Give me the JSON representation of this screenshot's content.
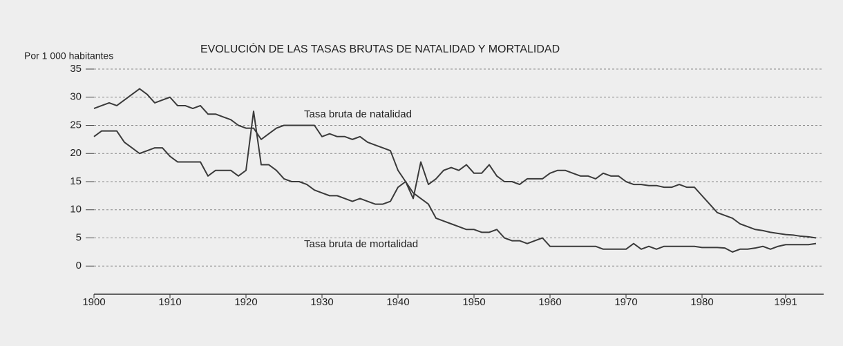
{
  "chart_data": {
    "type": "line",
    "title": "EVOLUCIÓN DE LAS TASAS BRUTAS DE NATALIDAD Y MORTALIDAD",
    "y_label": "Por 1 000 habitantes",
    "x": [
      1900,
      1901,
      1902,
      1903,
      1904,
      1905,
      1906,
      1907,
      1908,
      1909,
      1910,
      1911,
      1912,
      1913,
      1914,
      1915,
      1916,
      1917,
      1918,
      1919,
      1920,
      1921,
      1922,
      1923,
      1924,
      1925,
      1926,
      1927,
      1928,
      1929,
      1930,
      1931,
      1932,
      1933,
      1934,
      1935,
      1936,
      1937,
      1938,
      1939,
      1940,
      1941,
      1942,
      1943,
      1944,
      1945,
      1946,
      1947,
      1948,
      1949,
      1950,
      1951,
      1952,
      1953,
      1954,
      1955,
      1956,
      1957,
      1958,
      1959,
      1960,
      1961,
      1962,
      1963,
      1964,
      1965,
      1966,
      1967,
      1968,
      1969,
      1970,
      1971,
      1972,
      1973,
      1974,
      1975,
      1976,
      1977,
      1978,
      1979,
      1980,
      1981,
      1982,
      1983,
      1984,
      1985,
      1986,
      1987,
      1988,
      1989,
      1990,
      1991,
      1992,
      1993,
      1994,
      1995
    ],
    "series": [
      {
        "name": "Tasa bruta de natalidad",
        "color": "#3a3a3a",
        "values": [
          28,
          28.5,
          29,
          28.5,
          29.5,
          30.5,
          31.5,
          30.5,
          29,
          29.5,
          30,
          28.5,
          28.5,
          28,
          28.5,
          27,
          27,
          26.5,
          26,
          25,
          24.5,
          24.5,
          22.5,
          23.5,
          24.5,
          25,
          25,
          25,
          25,
          25,
          23,
          23.5,
          23,
          23,
          22.5,
          23,
          22,
          21.5,
          21,
          20.5,
          17,
          15,
          12,
          18.5,
          14.5,
          15.5,
          17,
          17.5,
          17,
          18,
          16.5,
          16.5,
          18,
          16,
          15,
          15,
          14.5,
          15.5,
          15.5,
          15.5,
          16.5,
          17,
          17,
          16.5,
          16,
          16,
          15.5,
          16.5,
          16,
          16,
          15,
          14.5,
          14.5,
          14.3,
          14.3,
          14,
          14,
          14.5,
          14,
          14,
          12.5,
          11,
          9.5,
          9,
          8.5,
          7.5,
          7,
          6.5,
          6.3,
          6,
          5.8,
          5.6,
          5.5,
          5.3,
          5.2,
          5
        ]
      },
      {
        "name": "Tasa bruta de mortalidad",
        "color": "#3a3a3a",
        "values": [
          23,
          24,
          24,
          24,
          22,
          21,
          20,
          20.5,
          21,
          21,
          19.5,
          18.5,
          18.5,
          18.5,
          18.5,
          16,
          17,
          17,
          17,
          16,
          17,
          27.5,
          18,
          18,
          17,
          15.5,
          15,
          15,
          14.5,
          13.5,
          13,
          12.5,
          12.5,
          12,
          11.5,
          12,
          11.5,
          11,
          11,
          11.5,
          14,
          15,
          13,
          12,
          11,
          8.5,
          8,
          7.5,
          7,
          6.5,
          6.5,
          6,
          6,
          6.5,
          5,
          4.5,
          4.5,
          4,
          4.5,
          5,
          3.5,
          3.5,
          3.5,
          3.5,
          3.5,
          3.5,
          3.5,
          3,
          3,
          3,
          3,
          4,
          3,
          3.5,
          3,
          3.5,
          3.5,
          3.5,
          3.5,
          3.5,
          3.3,
          3.3,
          3.3,
          3.2,
          2.5,
          3,
          3,
          3.2,
          3.5,
          3,
          3.5,
          3.8,
          3.8,
          3.8,
          3.8,
          4
        ]
      }
    ],
    "xlim": [
      1900,
      1996
    ],
    "xticks": [
      1900,
      1910,
      1920,
      1930,
      1940,
      1950,
      1960,
      1970,
      1980,
      1991
    ],
    "ylim": [
      -5,
      35
    ],
    "yticks": [
      0,
      5,
      10,
      15,
      20,
      25,
      30,
      35
    ],
    "grid": true
  }
}
